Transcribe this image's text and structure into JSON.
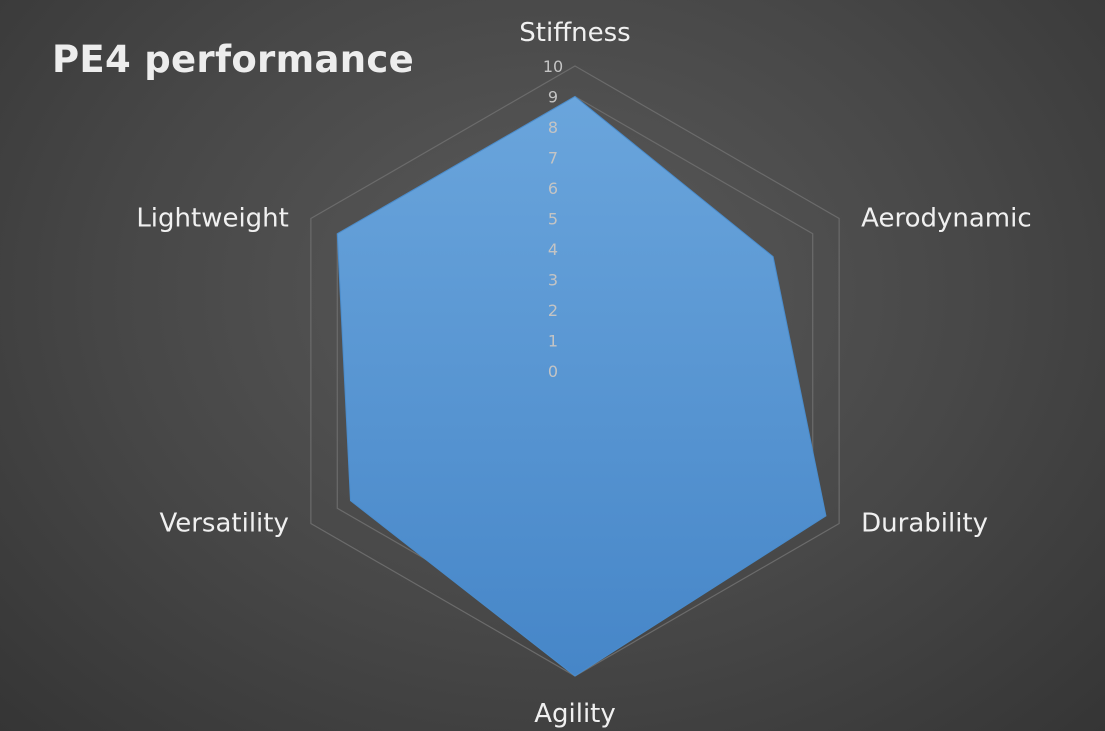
{
  "chart_data": {
    "type": "radar",
    "title": "PE4 performance",
    "categories": [
      "Stiffness",
      "Aerodynamic",
      "Durability",
      "Agility",
      "Versatility",
      "Lightweight"
    ],
    "series": [
      {
        "values": [
          9,
          7.5,
          9.5,
          10,
          8.5,
          9
        ],
        "color": "#5b9bd5"
      }
    ],
    "rlim": [
      0,
      10
    ],
    "ticks": [
      "0",
      "1",
      "2",
      "3",
      "4",
      "5",
      "6",
      "7",
      "8",
      "9",
      "10"
    ],
    "grid": true,
    "legend": "none"
  }
}
